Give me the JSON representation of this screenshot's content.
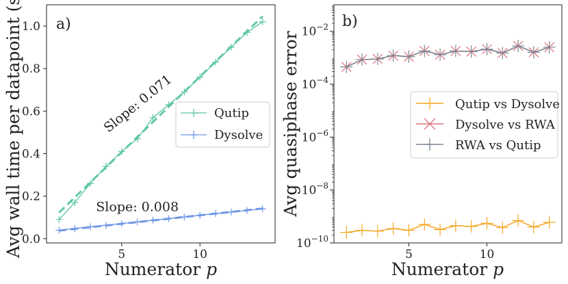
{
  "chart_data": [
    {
      "id": "a",
      "type": "line",
      "panel_label": "a)",
      "xlabel": "Numerator p",
      "ylabel": "Avg wall time per datapoint (s)",
      "xlim": [
        0.2,
        14.8
      ],
      "ylim": [
        -0.02,
        1.1
      ],
      "yscale": "linear",
      "xticks": [
        5,
        10
      ],
      "yticks": [
        0.0,
        0.2,
        0.4,
        0.6,
        0.8,
        1.0
      ],
      "ytick_labels": [
        "0.0",
        "0.2",
        "0.4",
        "0.6",
        "0.8",
        "1.0"
      ],
      "legend": {
        "location": "center-right"
      },
      "series": [
        {
          "name": "Qutip",
          "color": "#5fc8a3",
          "marker": "plus",
          "x": [
            1,
            2,
            3,
            4,
            5,
            6,
            7,
            8,
            9,
            10,
            11,
            12,
            13,
            14
          ],
          "y": [
            0.09,
            0.17,
            0.26,
            0.34,
            0.41,
            0.47,
            0.57,
            0.63,
            0.69,
            0.76,
            0.83,
            0.9,
            0.97,
            1.02
          ]
        },
        {
          "name": "Dysolve",
          "color": "#6f97e6",
          "marker": "plus",
          "x": [
            1,
            2,
            3,
            4,
            5,
            6,
            7,
            8,
            9,
            10,
            11,
            12,
            13,
            14
          ],
          "y": [
            0.04,
            0.048,
            0.056,
            0.063,
            0.071,
            0.079,
            0.087,
            0.094,
            0.102,
            0.11,
            0.118,
            0.125,
            0.133,
            0.14
          ]
        }
      ],
      "fits": [
        {
          "series": "Qutip",
          "slope": 0.071,
          "intercept": 0.052,
          "x_range": [
            1,
            14
          ],
          "color": "#5fc8a3",
          "style": "dashed"
        },
        {
          "series": "Dysolve",
          "slope": 0.008,
          "intercept": 0.03,
          "x_range": [
            1,
            14
          ],
          "color": "#6f97e6",
          "style": "dashed"
        }
      ],
      "annotations": [
        {
          "text": "Slope: 0.071",
          "x": 6.2,
          "y": 0.62,
          "rotation_deg": -39
        },
        {
          "text": "Slope: 0.008",
          "x": 6.0,
          "y": 0.13,
          "rotation_deg": 0
        }
      ]
    },
    {
      "id": "b",
      "type": "line",
      "panel_label": "b)",
      "xlabel": "Numerator p",
      "ylabel": "Avg quasiphase error",
      "xlim": [
        0.2,
        14.8
      ],
      "ylim": [
        1e-10,
        0.1
      ],
      "yscale": "log",
      "xticks": [
        5,
        10
      ],
      "yticks": [
        1e-10,
        1e-08,
        1e-06,
        0.0001,
        0.01
      ],
      "ytick_labels": [
        {
          "base": "10",
          "exp": "−10"
        },
        {
          "base": "10",
          "exp": "−8"
        },
        {
          "base": "10",
          "exp": "−6"
        },
        {
          "base": "10",
          "exp": "−4"
        },
        {
          "base": "10",
          "exp": "−2"
        }
      ],
      "legend": {
        "location": "center-right"
      },
      "series": [
        {
          "name": "Qutip vs Dysolve",
          "color": "#f5a623",
          "marker": "plus",
          "x": [
            1,
            2,
            3,
            4,
            5,
            6,
            7,
            8,
            9,
            10,
            11,
            12,
            13,
            14
          ],
          "y": [
            2.5e-10,
            3e-10,
            2.8e-10,
            3.5e-10,
            3e-10,
            5e-10,
            3.2e-10,
            4.5e-10,
            4.2e-10,
            5.5e-10,
            3.8e-10,
            7e-10,
            4e-10,
            6e-10
          ]
        },
        {
          "name": "Dysolve vs RWA",
          "color": "#d9717c",
          "marker": "x",
          "x": [
            1,
            2,
            3,
            4,
            5,
            6,
            7,
            8,
            9,
            10,
            11,
            12,
            13,
            14
          ],
          "y": [
            0.00045,
            0.00085,
            0.0009,
            0.0012,
            0.0011,
            0.0018,
            0.0013,
            0.0018,
            0.0017,
            0.0021,
            0.0015,
            0.0028,
            0.0016,
            0.0025
          ]
        },
        {
          "name": "RWA vs Qutip",
          "color": "#7c8594",
          "marker": "plus",
          "x": [
            1,
            2,
            3,
            4,
            5,
            6,
            7,
            8,
            9,
            10,
            11,
            12,
            13,
            14
          ],
          "y": [
            0.00045,
            0.00085,
            0.0009,
            0.0012,
            0.0011,
            0.0018,
            0.0013,
            0.0018,
            0.0017,
            0.0021,
            0.0015,
            0.0028,
            0.0016,
            0.0025
          ]
        }
      ]
    }
  ]
}
